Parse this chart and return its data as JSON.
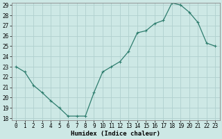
{
  "x": [
    0,
    1,
    2,
    3,
    4,
    5,
    6,
    7,
    8,
    9,
    10,
    11,
    12,
    13,
    14,
    15,
    16,
    17,
    18,
    19,
    20,
    21,
    22,
    23
  ],
  "y": [
    23.0,
    22.5,
    21.2,
    20.5,
    19.7,
    19.0,
    18.2,
    18.2,
    18.2,
    20.5,
    22.5,
    23.0,
    23.5,
    24.5,
    26.3,
    26.5,
    27.2,
    27.5,
    29.2,
    29.0,
    28.3,
    27.3,
    25.3,
    25.0
  ],
  "line_color": "#2e7d6e",
  "marker": "+",
  "marker_size": 3,
  "marker_linewidth": 0.8,
  "line_width": 0.9,
  "bg_color": "#cde8e5",
  "grid_color": "#b0d0ce",
  "xlabel": "Humidex (Indice chaleur)",
  "ylim": [
    18,
    29
  ],
  "xlim": [
    -0.5,
    23.5
  ],
  "yticks": [
    18,
    19,
    20,
    21,
    22,
    23,
    24,
    25,
    26,
    27,
    28,
    29
  ],
  "xticks": [
    0,
    1,
    2,
    3,
    4,
    5,
    6,
    7,
    8,
    9,
    10,
    11,
    12,
    13,
    14,
    15,
    16,
    17,
    18,
    19,
    20,
    21,
    22,
    23
  ],
  "xlabel_fontsize": 6.5,
  "tick_fontsize": 5.5,
  "spine_color": "#888888"
}
